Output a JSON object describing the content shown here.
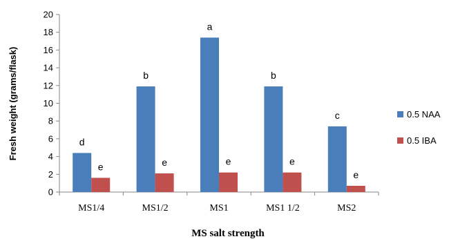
{
  "chart_data": {
    "type": "bar",
    "categories": [
      "MS1/4",
      "MS1/2",
      "MS1",
      "MS1 1/2",
      "MS2"
    ],
    "series": [
      {
        "name": "0.5 NAA",
        "color": "#4a7ebb",
        "values": [
          4.4,
          11.9,
          17.4,
          11.9,
          7.4
        ],
        "labels": [
          "d",
          "b",
          "a",
          "b",
          "c"
        ]
      },
      {
        "name": "0.5 IBA",
        "color": "#c0504d",
        "values": [
          1.6,
          2.1,
          2.2,
          2.2,
          0.7
        ],
        "labels": [
          "e",
          "e",
          "e",
          "e",
          "e"
        ]
      }
    ],
    "xlabel": "MS salt strength",
    "ylabel": "Fresh weight (grams/flask)",
    "ylim": [
      0,
      20
    ],
    "yticks": [
      0,
      2,
      4,
      6,
      8,
      10,
      12,
      14,
      16,
      18,
      20
    ],
    "grid": false,
    "legend": "right"
  }
}
